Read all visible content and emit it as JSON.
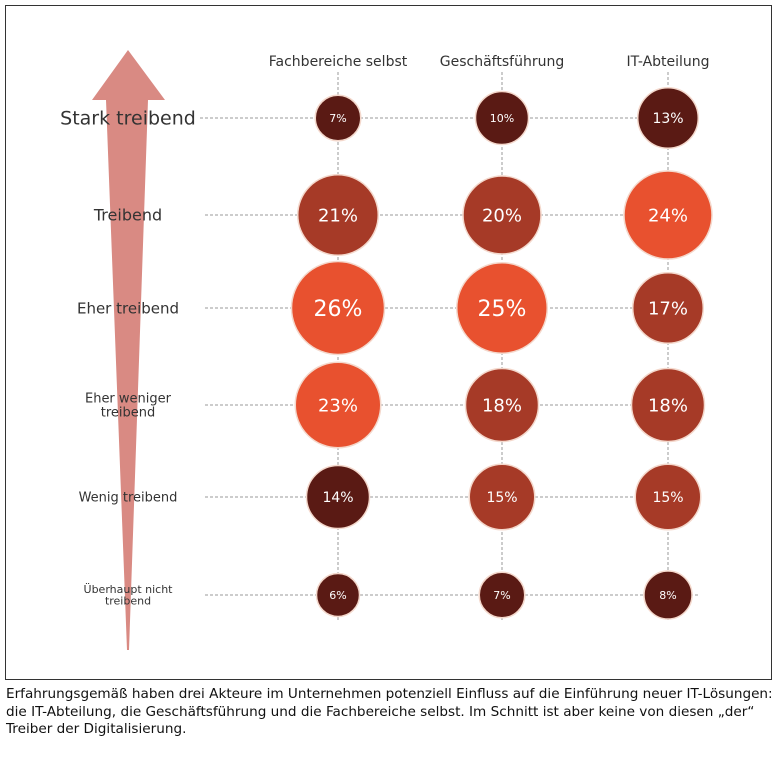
{
  "chart_data": {
    "type": "bubble",
    "title": "",
    "columns": [
      "Fachbereiche selbst",
      "Geschäftsführung",
      "IT-Abteilung"
    ],
    "rows": [
      "Stark treibend",
      "Treibend",
      "Eher treibend",
      "Eher weniger treibend",
      "Wenig treibend",
      "Überhaupt nicht treibend"
    ],
    "row_label_lines": [
      [
        "Stark treibend"
      ],
      [
        "Treibend"
      ],
      [
        "Eher treibend"
      ],
      [
        "Eher weniger",
        "treibend"
      ],
      [
        "Wenig treibend"
      ],
      [
        "Überhaupt nicht",
        "treibend"
      ]
    ],
    "values": [
      [
        7,
        10,
        13
      ],
      [
        21,
        20,
        24
      ],
      [
        26,
        25,
        17
      ],
      [
        23,
        18,
        18
      ],
      [
        14,
        15,
        15
      ],
      [
        6,
        7,
        8
      ]
    ],
    "color_levels": [
      [
        "dark",
        "dark",
        "dark"
      ],
      [
        "medium",
        "medium",
        "bright"
      ],
      [
        "bright",
        "bright",
        "medium"
      ],
      [
        "bright",
        "medium",
        "medium"
      ],
      [
        "dark",
        "medium",
        "medium"
      ],
      [
        "dark",
        "dark",
        "dark"
      ]
    ],
    "colors": {
      "dark": "#5a1a14",
      "medium": "#a63a27",
      "bright": "#e8512f",
      "arrow": "#d98a83"
    },
    "unit": "%"
  },
  "caption": "Erfahrungsgemäß haben drei Akteure im Unternehmen potenziell Einfluss auf die Einführung neuer IT-Lösungen: die IT-Abteilung, die Geschäftsführung und die Fachbereiche selbst. Im Schnitt ist aber keine von diesen „der“ Treiber der Digitalisierung."
}
